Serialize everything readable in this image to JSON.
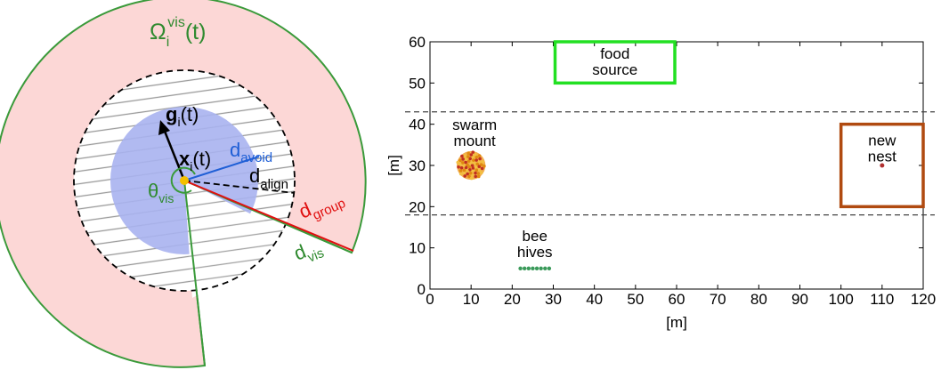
{
  "left_diagram": {
    "omega_label": {
      "base": "Ω",
      "sub": "i",
      "sup": "vis",
      "tail": "(t)"
    },
    "g_label": {
      "base": "g",
      "sub": "i",
      "tail": "(t)"
    },
    "x_label": {
      "base": "x",
      "sub": "i",
      "tail": "(t)"
    },
    "theta_label": {
      "base": "θ",
      "sub": "vis"
    },
    "d_avoid": {
      "base": "d",
      "sub": "avoid"
    },
    "d_align": {
      "base": "d",
      "sub": "align"
    },
    "d_group": {
      "base": "d",
      "sub": "group"
    },
    "d_vis": {
      "base": "d",
      "sub": "vis"
    },
    "colors": {
      "vision_fill": "#fcd7d6",
      "vision_stroke": "#3a9a3a",
      "avoid_fill": "#a8b3f0",
      "avoid_line": "#1f5fd6",
      "group_line": "#e01010",
      "agent": "#f4c000",
      "green_text": "#2f8a2f"
    }
  },
  "chart_data": {
    "type": "scatter",
    "x_ticks": [
      0,
      10,
      20,
      30,
      40,
      50,
      60,
      70,
      80,
      90,
      100,
      110,
      120
    ],
    "y_ticks": [
      0,
      10,
      20,
      30,
      40,
      50,
      60
    ],
    "xlim": [
      0,
      120
    ],
    "ylim": [
      0,
      60
    ],
    "xlabel": "[m]",
    "ylabel": "[m]",
    "grid": false,
    "dashed_lines_y": [
      43,
      18
    ],
    "food_source": {
      "label_lines": [
        "food",
        "source"
      ],
      "x": [
        30,
        60
      ],
      "y": [
        50,
        60
      ],
      "color": "#22e022"
    },
    "new_nest": {
      "label_lines": [
        "new",
        "nest"
      ],
      "x": [
        100,
        120
      ],
      "y": [
        20,
        40
      ],
      "color": "#b04a10",
      "point": [
        110,
        30
      ]
    },
    "swarm_mount": {
      "label_lines": [
        "swarm",
        "mount"
      ],
      "center": [
        10,
        30
      ],
      "radius": 3.5,
      "color": "#f0a030"
    },
    "bee_hives": {
      "label_lines": [
        "bee",
        "hives"
      ],
      "points_x": [
        22,
        23,
        24,
        25,
        26,
        27,
        28,
        29
      ],
      "y": 5,
      "color": "#3a9a5a"
    }
  }
}
